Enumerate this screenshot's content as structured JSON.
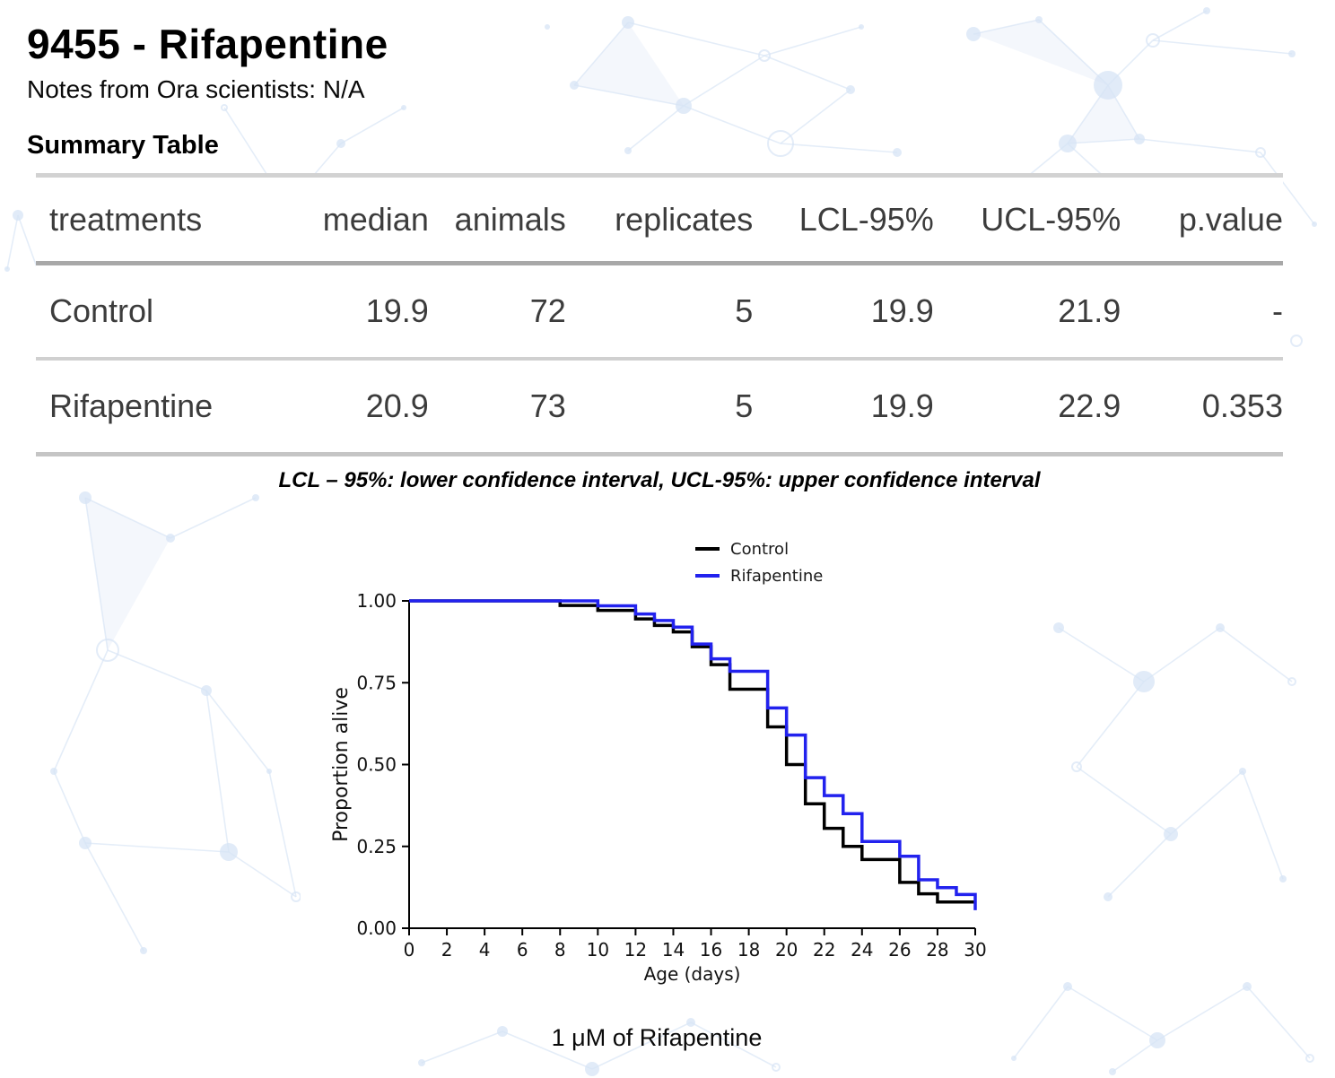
{
  "page": {
    "title": "9455 - Rifapentine",
    "notes": "Notes from Ora scientists: N/A",
    "section_heading": "Summary Table",
    "footnote": "LCL – 95%: lower confidence interval, UCL-95%: upper confidence interval",
    "caption": "1 μM of Rifapentine"
  },
  "table": {
    "headers": [
      "treatments",
      "median",
      "animals",
      "replicates",
      "LCL-95%",
      "UCL-95%",
      "p.value"
    ],
    "rows": [
      [
        "Control",
        "19.9",
        "72",
        "5",
        "19.9",
        "21.9",
        "-"
      ],
      [
        "Rifapentine",
        "20.9",
        "73",
        "5",
        "19.9",
        "22.9",
        "0.353"
      ]
    ]
  },
  "chart_data": {
    "type": "line",
    "subtype": "kaplan-meier-step",
    "title": "",
    "xlabel": "Age (days)",
    "ylabel": "Proportion alive",
    "xlim": [
      0,
      30
    ],
    "ylim": [
      0,
      1
    ],
    "xticks": [
      0,
      2,
      4,
      6,
      8,
      10,
      12,
      14,
      16,
      18,
      20,
      22,
      24,
      26,
      28,
      30
    ],
    "yticks": [
      0.0,
      0.25,
      0.5,
      0.75,
      1.0
    ],
    "grid": false,
    "legend_position": "top-center-inside",
    "series": [
      {
        "name": "Control",
        "color": "#000000",
        "steps": [
          [
            0,
            1.0
          ],
          [
            8,
            0.986
          ],
          [
            10,
            0.971
          ],
          [
            12,
            0.945
          ],
          [
            13,
            0.925
          ],
          [
            14,
            0.905
          ],
          [
            15,
            0.86
          ],
          [
            16,
            0.805
          ],
          [
            17,
            0.73
          ],
          [
            19,
            0.615
          ],
          [
            20,
            0.5
          ],
          [
            21,
            0.38
          ],
          [
            22,
            0.305
          ],
          [
            23,
            0.25
          ],
          [
            24,
            0.21
          ],
          [
            26,
            0.14
          ],
          [
            27,
            0.105
          ],
          [
            28,
            0.08
          ],
          [
            30,
            0.08
          ]
        ]
      },
      {
        "name": "Rifapentine",
        "color": "#2222ee",
        "steps": [
          [
            0,
            1.0
          ],
          [
            10,
            0.985
          ],
          [
            12,
            0.96
          ],
          [
            13,
            0.94
          ],
          [
            14,
            0.92
          ],
          [
            15,
            0.868
          ],
          [
            16,
            0.823
          ],
          [
            17,
            0.785
          ],
          [
            19,
            0.673
          ],
          [
            20,
            0.59
          ],
          [
            21,
            0.46
          ],
          [
            22,
            0.405
          ],
          [
            23,
            0.35
          ],
          [
            24,
            0.265
          ],
          [
            26,
            0.22
          ],
          [
            27,
            0.148
          ],
          [
            28,
            0.124
          ],
          [
            29,
            0.103
          ],
          [
            30,
            0.055
          ]
        ]
      }
    ]
  },
  "colors": {
    "accent_blue": "#2222ee",
    "pattern_blue": "#d7e4f5",
    "table_rule_gray": "#c5c5c5"
  }
}
